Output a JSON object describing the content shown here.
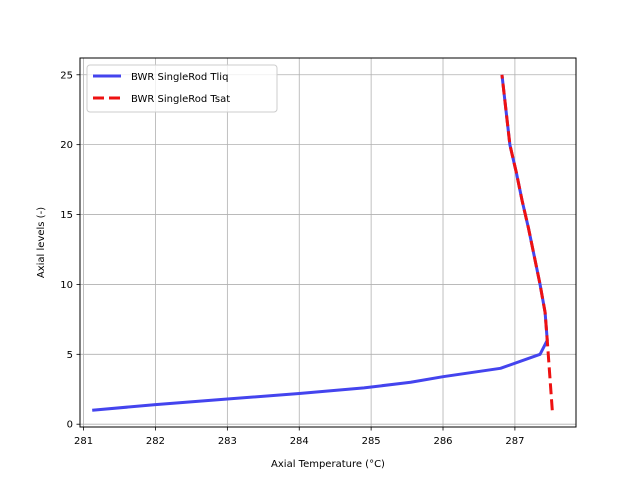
{
  "chart_data": {
    "type": "line",
    "title": "",
    "xlabel": "Axial Temperature (°C)",
    "ylabel": "Axial levels (-)",
    "xlim": [
      280.95,
      287.85
    ],
    "ylim": [
      -0.2,
      26.2
    ],
    "xticks": [
      281,
      282,
      283,
      284,
      285,
      286,
      287
    ],
    "yticks": [
      0,
      5,
      10,
      15,
      20,
      25
    ],
    "grid": true,
    "legend_position": "upper-left",
    "series": [
      {
        "name": "BWR SingleRod Tliq",
        "color": "#4444ee",
        "style": "solid",
        "x": [
          281.12,
          282.0,
          283.0,
          284.0,
          284.9,
          285.55,
          286.0,
          286.8,
          287.35,
          287.45,
          287.42,
          287.35,
          287.27,
          287.19,
          287.1,
          287.02,
          286.93,
          286.82
        ],
        "y": [
          1,
          1.4,
          1.8,
          2.2,
          2.6,
          3.0,
          3.4,
          4.0,
          5.0,
          6.0,
          8,
          10,
          12,
          14,
          16,
          18,
          20,
          25
        ]
      },
      {
        "name": "BWR SingleRod Tsat",
        "color": "#ee1111",
        "style": "dashed",
        "x": [
          287.52,
          287.45,
          287.42,
          287.35,
          287.27,
          287.19,
          287.1,
          287.02,
          286.93,
          286.82
        ],
        "y": [
          1,
          6.0,
          8,
          10,
          12,
          14,
          16,
          18,
          20,
          25
        ]
      }
    ]
  }
}
